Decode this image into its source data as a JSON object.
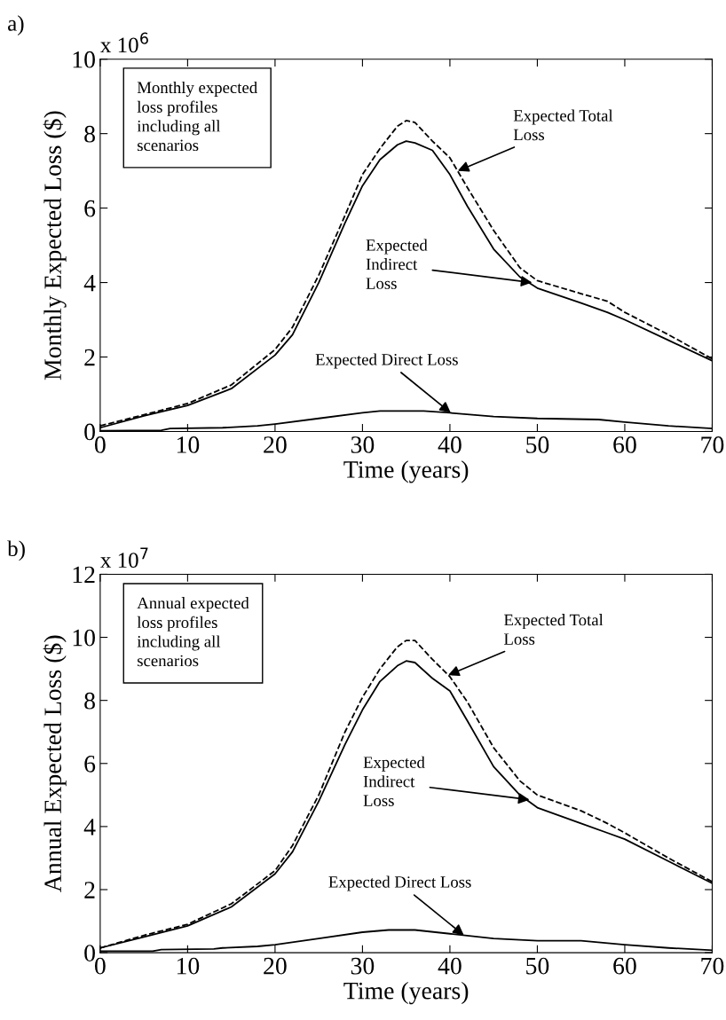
{
  "chart_data": [
    {
      "type": "line",
      "title": "a)",
      "xlabel": "Time (years)",
      "ylabel": "Monthly Expected Loss ($)",
      "xlim": [
        0,
        70
      ],
      "ylim": [
        0,
        10
      ],
      "xticks": [
        0,
        10,
        20,
        30,
        40,
        50,
        60,
        70
      ],
      "yticks": [
        0,
        2,
        4,
        6,
        8,
        10
      ],
      "grid": false,
      "legend": false,
      "series": [
        {
          "color": "#000000",
          "line_style": "dashed",
          "x": [
            0,
            5,
            10,
            15,
            20,
            22,
            25,
            28,
            30,
            32,
            34,
            35,
            36,
            38,
            40,
            42,
            45,
            48,
            50,
            55,
            58,
            60,
            65,
            70
          ],
          "values": [
            0.15,
            0.45,
            0.75,
            1.25,
            2.2,
            2.8,
            4.2,
            5.8,
            6.9,
            7.6,
            8.2,
            8.35,
            8.3,
            7.8,
            7.35,
            6.55,
            5.4,
            4.4,
            4.05,
            3.7,
            3.5,
            3.2,
            2.6,
            1.95
          ]
        },
        {
          "color": "#000000",
          "line_style": "solid",
          "x": [
            0,
            5,
            10,
            15,
            20,
            22,
            25,
            28,
            30,
            32,
            34,
            35,
            36,
            38,
            40,
            42,
            45,
            48,
            50,
            55,
            58,
            60,
            65,
            70
          ],
          "values": [
            0.1,
            0.42,
            0.7,
            1.15,
            2.05,
            2.6,
            4.0,
            5.6,
            6.6,
            7.3,
            7.7,
            7.8,
            7.75,
            7.55,
            6.9,
            6.05,
            4.9,
            4.15,
            3.85,
            3.45,
            3.2,
            3.0,
            2.45,
            1.9
          ]
        },
        {
          "color": "#000000",
          "line_style": "solid",
          "x": [
            0,
            7,
            8,
            14,
            18,
            20,
            25,
            30,
            32,
            37,
            40,
            45,
            50,
            57,
            60,
            65,
            70
          ],
          "values": [
            0.02,
            0.03,
            0.08,
            0.1,
            0.15,
            0.2,
            0.35,
            0.5,
            0.55,
            0.55,
            0.5,
            0.4,
            0.35,
            0.32,
            0.25,
            0.15,
            0.08
          ]
        }
      ],
      "annotations": [
        "x 10$^{6}$",
        "Monthly expected\nloss profiles\nincluding all\nscenarios",
        {
          "text": "Expected Total\nLoss",
          "x": 40.9,
          "y": 7.0
        },
        {
          "text": "Expected\nIndirect\nLoss",
          "x": 49.4,
          "y": 4.0
        },
        {
          "text": "Expected Direct Loss",
          "x": 40.1,
          "y": 0.5
        }
      ]
    },
    {
      "type": "line",
      "title": "b)",
      "xlabel": "Time (years)",
      "ylabel": "Annual Expected Loss ($)",
      "xlim": [
        0,
        70
      ],
      "ylim": [
        0,
        12
      ],
      "xticks": [
        0,
        10,
        20,
        30,
        40,
        50,
        60,
        70
      ],
      "yticks": [
        0,
        2,
        4,
        6,
        8,
        10,
        12
      ],
      "grid": false,
      "legend": false,
      "series": [
        {
          "color": "#000000",
          "line_style": "dashed",
          "x": [
            0,
            5,
            10,
            15,
            20,
            22,
            25,
            28,
            30,
            32,
            34,
            35,
            36,
            38,
            40,
            42,
            45,
            48,
            50,
            55,
            58,
            60,
            65,
            70
          ],
          "values": [
            0.15,
            0.55,
            0.9,
            1.55,
            2.6,
            3.4,
            5.0,
            7.0,
            8.1,
            9.0,
            9.7,
            9.9,
            9.9,
            9.3,
            8.75,
            7.95,
            6.5,
            5.45,
            5.0,
            4.5,
            4.1,
            3.8,
            3.0,
            2.25
          ]
        },
        {
          "color": "#000000",
          "line_style": "solid",
          "x": [
            0,
            5,
            10,
            15,
            20,
            22,
            25,
            28,
            30,
            32,
            34,
            35,
            36,
            38,
            40,
            42,
            45,
            48,
            50,
            55,
            58,
            60,
            65,
            70
          ],
          "values": [
            0.15,
            0.5,
            0.85,
            1.45,
            2.5,
            3.2,
            4.8,
            6.6,
            7.7,
            8.6,
            9.1,
            9.25,
            9.2,
            8.7,
            8.3,
            7.35,
            5.9,
            5.0,
            4.6,
            4.1,
            3.8,
            3.6,
            2.9,
            2.2
          ]
        },
        {
          "color": "#000000",
          "line_style": "solid",
          "x": [
            0,
            6,
            7,
            13,
            14,
            18,
            20,
            25,
            30,
            33,
            36,
            40,
            45,
            50,
            55,
            60,
            65,
            70
          ],
          "values": [
            0.05,
            0.05,
            0.1,
            0.12,
            0.15,
            0.2,
            0.25,
            0.45,
            0.65,
            0.72,
            0.72,
            0.6,
            0.45,
            0.38,
            0.38,
            0.25,
            0.15,
            0.08
          ]
        }
      ],
      "annotations": [
        "x 10$^{7}$",
        "Annual expected\nloss profiles\nincluding all\nscenarios",
        {
          "text": "Expected Total\nLoss",
          "x": 39.8,
          "y": 8.8
        },
        {
          "text": "Expected\nIndirect\nLoss",
          "x": 49.1,
          "y": 4.85
        },
        {
          "text": "Expected Direct Loss",
          "x": 41.6,
          "y": 0.55
        }
      ]
    }
  ]
}
